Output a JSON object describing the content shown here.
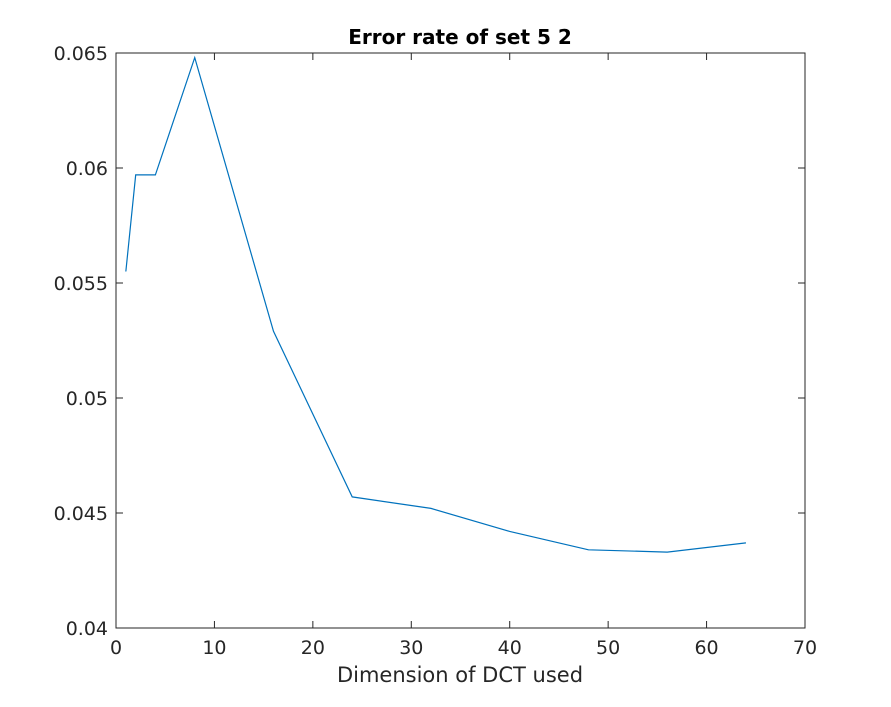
{
  "chart_data": {
    "type": "line",
    "title": "Error rate of set 5 2",
    "xlabel": "Dimension of DCT used",
    "ylabel": "",
    "xlim": [
      0,
      70
    ],
    "ylim": [
      0.04,
      0.065
    ],
    "xticks": [
      "0",
      "10",
      "20",
      "30",
      "40",
      "50",
      "60",
      "70"
    ],
    "yticks": [
      "0.04",
      "0.045",
      "0.05",
      "0.055",
      "0.06",
      "0.065"
    ],
    "grid": false,
    "line_color": "#0072BD",
    "series": [
      {
        "x": [
          1,
          2,
          4,
          8,
          16,
          24,
          32,
          40,
          48,
          56,
          64
        ],
        "y": [
          0.0555,
          0.0597,
          0.0597,
          0.0648,
          0.0529,
          0.0457,
          0.0452,
          0.0442,
          0.0434,
          0.0433,
          0.0437
        ]
      }
    ]
  }
}
